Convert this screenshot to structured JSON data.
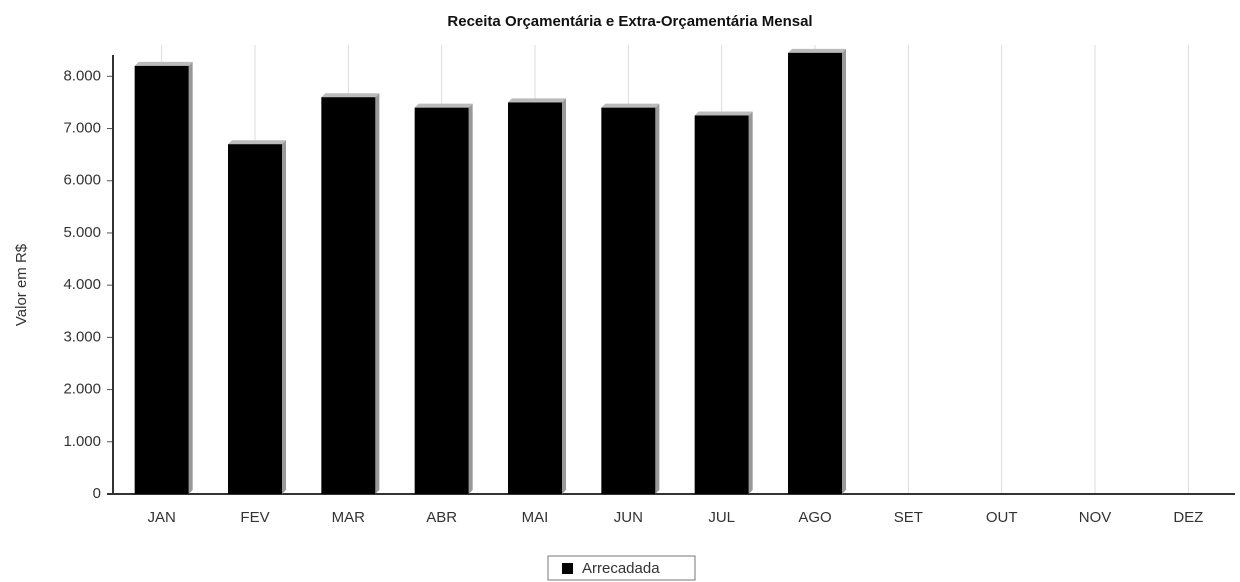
{
  "chart_data": {
    "type": "bar",
    "title": "Receita Orçamentária e Extra-Orçamentária Mensal",
    "y_label": "Valor em R$",
    "categories": [
      "JAN",
      "FEV",
      "MAR",
      "ABR",
      "MAI",
      "JUN",
      "JUL",
      "AGO",
      "SET",
      "OUT",
      "NOV",
      "DEZ"
    ],
    "series": [
      {
        "name": "Arrecadada",
        "color": "#000000",
        "values": [
          8200,
          6700,
          7600,
          7400,
          7500,
          7400,
          7250,
          8450,
          null,
          null,
          null,
          null
        ]
      }
    ],
    "ylim": [
      0,
      8600
    ],
    "yticks": [
      {
        "value": 0,
        "label": "0"
      },
      {
        "value": 1000,
        "label": "1.000"
      },
      {
        "value": 2000,
        "label": "2.000"
      },
      {
        "value": 3000,
        "label": "3.000"
      },
      {
        "value": 4000,
        "label": "4.000"
      },
      {
        "value": 5000,
        "label": "5.000"
      },
      {
        "value": 6000,
        "label": "6.000"
      },
      {
        "value": 7000,
        "label": "7.000"
      },
      {
        "value": 8000,
        "label": "8.000"
      }
    ],
    "grid": true
  }
}
